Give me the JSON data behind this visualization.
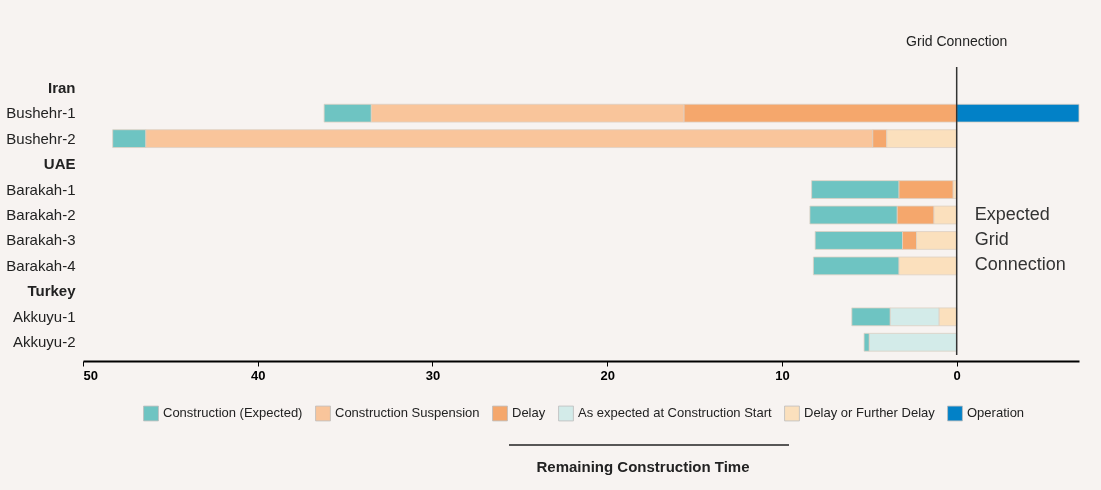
{
  "chart_data": {
    "type": "bar",
    "orientation": "horizontal",
    "stacked": false,
    "categories": [
      "Iran",
      "Bushehr-1",
      "Bushehr-2",
      "UAE",
      "Barakah-1",
      "Barakah-2",
      "Barakah-3",
      "Barakah-4",
      "Turkey",
      "Akkuyu-1",
      "Akkuyu-2"
    ],
    "series": [
      {
        "name": "Construction (Expected)",
        "color": "#6ec4c2",
        "base": [
          null,
          33.5,
          46.4,
          null,
          3.3,
          3.4,
          3.1,
          3.3,
          null,
          3.8,
          5.0
        ],
        "values": [
          null,
          2.7,
          1.9,
          null,
          5.0,
          5.0,
          5.0,
          4.9,
          null,
          2.2,
          0.3
        ]
      },
      {
        "name": "Construction Suspension",
        "color": "#f9c59b",
        "base": [
          null,
          15.6,
          4.8,
          null,
          null,
          null,
          null,
          null,
          null,
          null,
          null
        ],
        "values": [
          null,
          17.9,
          41.6,
          null,
          null,
          null,
          null,
          null,
          null,
          null,
          null
        ]
      },
      {
        "name": "Delay",
        "color": "#f5a76c",
        "base": [
          null,
          0,
          4.0,
          null,
          0.2,
          1.3,
          2.3,
          null,
          null,
          null,
          null
        ],
        "values": [
          null,
          15.6,
          0.8,
          null,
          3.1,
          2.1,
          0.8,
          null,
          null,
          null,
          null
        ]
      },
      {
        "name": "As expected at Construction Start",
        "color": "#d3ebe9",
        "base": [
          null,
          null,
          null,
          null,
          null,
          null,
          null,
          null,
          null,
          1.0,
          0
        ],
        "values": [
          null,
          null,
          null,
          null,
          null,
          null,
          null,
          null,
          null,
          2.8,
          5.0
        ]
      },
      {
        "name": "Delay or Further Delay",
        "color": "#fbe0bd",
        "base": [
          null,
          null,
          0,
          null,
          0,
          0,
          0,
          0,
          null,
          0,
          null
        ],
        "values": [
          null,
          null,
          4.0,
          null,
          0.2,
          1.3,
          2.3,
          3.3,
          null,
          1.0,
          null
        ]
      },
      {
        "name": "Operation",
        "color": "#0281c7",
        "base": [
          null,
          -7,
          null,
          null,
          null,
          null,
          null,
          null,
          null,
          null,
          null
        ],
        "values": [
          null,
          7,
          null,
          null,
          null,
          null,
          null,
          null,
          null,
          null,
          null
        ]
      }
    ],
    "xlim": [
      50,
      -7
    ],
    "xticks": [
      50,
      40,
      30,
      20,
      10,
      0
    ],
    "grid": false,
    "legend": "bottom",
    "ref_lines": [
      {
        "axis": "x",
        "value": 0,
        "label": "Grid Connection"
      }
    ],
    "annotations": [
      {
        "text": "Expected Grid Connection",
        "x": 0,
        "y": "Barakah-2"
      },
      "Remaining Construction Time"
    ]
  }
}
